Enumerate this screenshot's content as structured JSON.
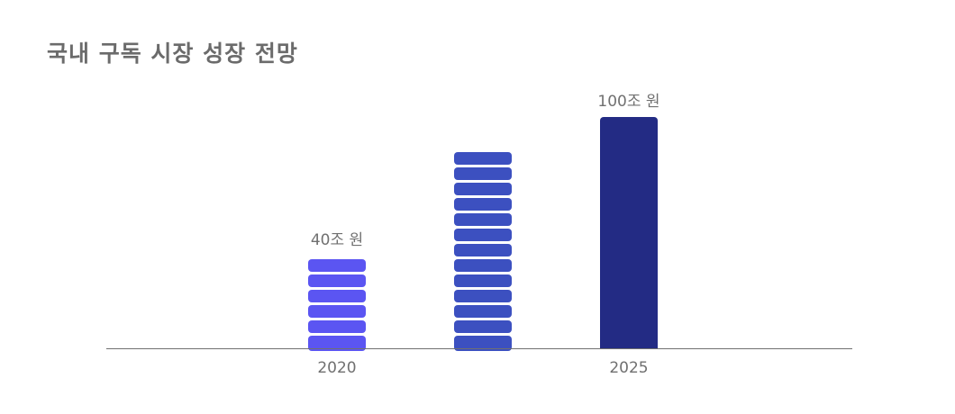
{
  "chart_data": {
    "type": "bar",
    "title": "국내 구독 시장 성장 전망",
    "categories": [
      "2020",
      "",
      "2025"
    ],
    "values": [
      40,
      85,
      100
    ],
    "data_labels": [
      "40조 원",
      "",
      "100조 원"
    ],
    "bar_styles": [
      "stacked-segments",
      "stacked-segments",
      "solid"
    ],
    "colors": [
      "#5b55f2",
      "#3c50c0",
      "#232b84"
    ],
    "axis_color": "#707070",
    "xlabel": "",
    "ylabel": "",
    "ylim": [
      0,
      100
    ],
    "grid": false
  }
}
